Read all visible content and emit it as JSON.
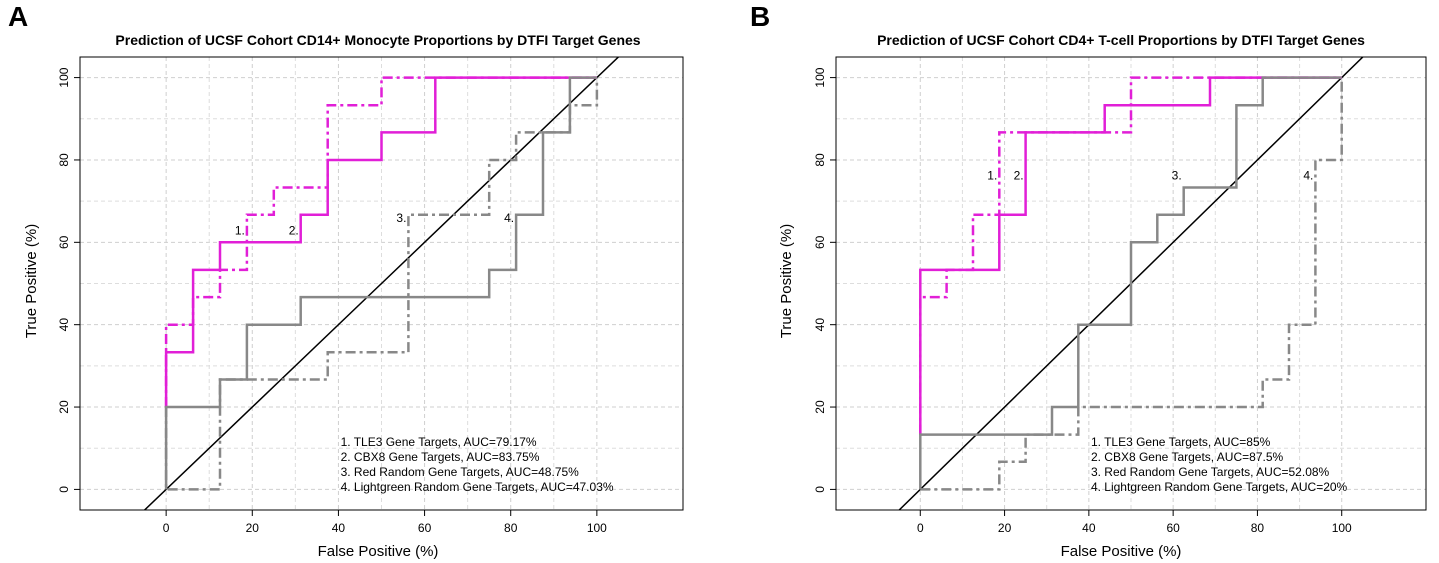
{
  "chart_data": [
    {
      "panel": "A",
      "type": "line",
      "title": "Prediction of UCSF Cohort CD14+ Monocyte Proportions by DTFI Target Genes",
      "xlabel": "False Positive (%)",
      "ylabel": "True Positive (%)",
      "xlim": [
        -20,
        120
      ],
      "ylim": [
        -5,
        105
      ],
      "xticks": [
        0,
        20,
        40,
        60,
        80,
        100
      ],
      "yticks": [
        0,
        20,
        40,
        60,
        80,
        100
      ],
      "grid": true,
      "legend_position": "bottom-right",
      "legend": [
        "1. TLE3 Gene Targets, AUC=79.17%",
        "2. CBX8 Gene Targets, AUC=83.75%",
        "3. Red Random Gene Targets, AUC=48.75%",
        "4. Lightgreen Random Gene Targets, AUC=47.03%"
      ],
      "series": [
        {
          "name": "TLE3 Gene Targets",
          "label": "1.",
          "label_at": [
            18.75,
            60
          ],
          "color": "#e11fd7",
          "dash": "dashdot",
          "x": [
            0,
            0,
            0,
            6.25,
            6.25,
            12.5,
            12.5,
            18.75,
            18.75,
            25,
            25,
            37.5,
            37.5,
            50,
            50,
            100
          ],
          "y": [
            20,
            33.3,
            40,
            40,
            46.7,
            46.7,
            53.3,
            53.3,
            66.7,
            66.7,
            73.3,
            73.3,
            93.3,
            93.3,
            100,
            100
          ]
        },
        {
          "name": "CBX8 Gene Targets",
          "label": "2.",
          "label_at": [
            31.25,
            60
          ],
          "color": "#e11fd7",
          "dash": "solid",
          "x": [
            0,
            0,
            6.25,
            6.25,
            12.5,
            12.5,
            31.25,
            31.25,
            37.5,
            37.5,
            50,
            50,
            56.25,
            56.25,
            62.5,
            62.5,
            100
          ],
          "y": [
            20,
            33.3,
            33.3,
            53.3,
            53.3,
            60,
            60,
            66.7,
            66.7,
            80,
            80,
            86.7,
            86.7,
            86.7,
            86.7,
            100,
            100
          ]
        },
        {
          "name": "Red Random Gene Targets",
          "label": "3.",
          "label_at": [
            56.25,
            63
          ],
          "color": "#888888",
          "dash": "dashdot",
          "x": [
            0,
            0,
            12.5,
            12.5,
            37.5,
            37.5,
            56.25,
            56.25,
            75,
            75,
            81.25,
            81.25,
            93.75,
            93.75,
            100,
            100
          ],
          "y": [
            20,
            0,
            0,
            26.7,
            26.7,
            33.3,
            33.3,
            66.7,
            66.7,
            80,
            80,
            86.7,
            86.7,
            93.3,
            93.3,
            100
          ]
        },
        {
          "name": "Lightgreen Random Gene Targets",
          "label": "4.",
          "label_at": [
            81.25,
            63
          ],
          "color": "#888888",
          "dash": "solid",
          "x": [
            0,
            0,
            12.5,
            12.5,
            18.75,
            18.75,
            31.25,
            31.25,
            75,
            75,
            81.25,
            81.25,
            87.5,
            87.5,
            93.75,
            93.75,
            100
          ],
          "y": [
            0,
            20,
            20,
            26.7,
            26.7,
            40,
            40,
            46.7,
            46.7,
            53.3,
            53.3,
            66.7,
            66.7,
            86.7,
            86.7,
            100,
            100
          ]
        }
      ]
    },
    {
      "panel": "B",
      "type": "line",
      "title": "Prediction of UCSF Cohort CD4+ T-cell Proportions by DTFI Target Genes",
      "xlabel": "False Positive (%)",
      "ylabel": "True Positive (%)",
      "xlim": [
        -20,
        120
      ],
      "ylim": [
        -5,
        105
      ],
      "xticks": [
        0,
        20,
        40,
        60,
        80,
        100
      ],
      "yticks": [
        0,
        20,
        40,
        60,
        80,
        100
      ],
      "grid": true,
      "legend_position": "bottom-right",
      "legend": [
        "1. TLE3 Gene Targets, AUC=85%",
        "2. CBX8 Gene Targets, AUC=87.5%",
        "3. Red Random Gene Targets, AUC=52.08%",
        "4. Lightgreen Random Gene Targets, AUC=20%"
      ],
      "series": [
        {
          "name": "TLE3 Gene Targets",
          "label": "1.",
          "label_at": [
            18.75,
            73.3
          ],
          "color": "#e11fd7",
          "dash": "dashdot",
          "x": [
            0,
            0,
            6.25,
            6.25,
            12.5,
            12.5,
            18.75,
            18.75,
            43.75,
            43.75,
            50,
            50,
            100
          ],
          "y": [
            13.3,
            46.7,
            46.7,
            53.3,
            53.3,
            66.7,
            66.7,
            86.7,
            86.7,
            86.7,
            86.7,
            100,
            100
          ]
        },
        {
          "name": "CBX8 Gene Targets",
          "label": "2.",
          "label_at": [
            25,
            73.3
          ],
          "color": "#e11fd7",
          "dash": "solid",
          "x": [
            0,
            0,
            18.75,
            18.75,
            25,
            25,
            43.75,
            43.75,
            68.75,
            68.75,
            100
          ],
          "y": [
            13.3,
            53.3,
            53.3,
            66.7,
            66.7,
            86.7,
            86.7,
            93.3,
            93.3,
            100,
            100
          ]
        },
        {
          "name": "Red Random Gene Targets",
          "label": "3.",
          "label_at": [
            62.5,
            73.3
          ],
          "color": "#888888",
          "dash": "solid",
          "x": [
            0,
            0,
            31.25,
            31.25,
            37.5,
            37.5,
            50,
            50,
            56.25,
            56.25,
            62.5,
            62.5,
            75,
            75,
            81.25,
            81.25,
            100
          ],
          "y": [
            0,
            13.3,
            13.3,
            20,
            20,
            40,
            40,
            60,
            60,
            66.7,
            66.7,
            73.3,
            73.3,
            93.3,
            93.3,
            100,
            100
          ]
        },
        {
          "name": "Lightgreen Random Gene Targets",
          "label": "4.",
          "label_at": [
            93.75,
            73.3
          ],
          "color": "#888888",
          "dash": "dashdot",
          "x": [
            0,
            18.75,
            18.75,
            25,
            25,
            37.5,
            37.5,
            81.25,
            81.25,
            87.5,
            87.5,
            93.75,
            93.75,
            100,
            100
          ],
          "y": [
            0,
            0,
            6.7,
            6.7,
            13.3,
            13.3,
            20,
            20,
            26.7,
            26.7,
            40,
            40,
            80,
            80,
            100
          ]
        }
      ]
    }
  ]
}
